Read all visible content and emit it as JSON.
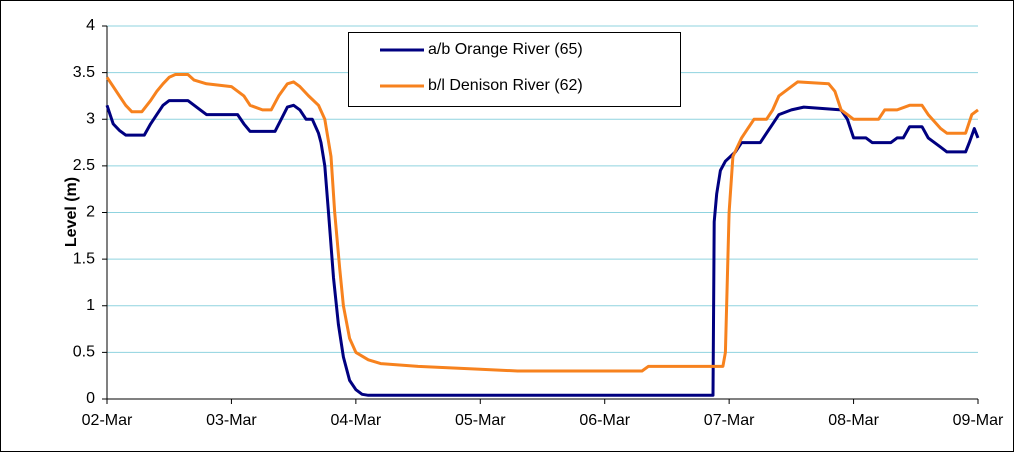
{
  "chart_data": {
    "type": "line",
    "y_label": "Level (m)",
    "xlim": [
      2,
      9
    ],
    "xticks": [
      {
        "value": 2,
        "label": "02-Mar"
      },
      {
        "value": 3,
        "label": "03-Mar"
      },
      {
        "value": 4,
        "label": "04-Mar"
      },
      {
        "value": 5,
        "label": "05-Mar"
      },
      {
        "value": 6,
        "label": "06-Mar"
      },
      {
        "value": 7,
        "label": "07-Mar"
      },
      {
        "value": 8,
        "label": "08-Mar"
      },
      {
        "value": 9,
        "label": "09-Mar"
      }
    ],
    "ylim": [
      0,
      4
    ],
    "yticks": [
      0,
      0.5,
      1,
      1.5,
      2,
      2.5,
      3,
      3.5,
      4
    ],
    "grid": true,
    "legend": "top",
    "series": [
      {
        "name": "a/b Orange River (65)",
        "color": "#000080",
        "x": [
          2.0,
          2.05,
          2.1,
          2.15,
          2.3,
          2.35,
          2.4,
          2.45,
          2.5,
          2.65,
          2.75,
          2.8,
          3.05,
          3.1,
          3.15,
          3.35,
          3.4,
          3.45,
          3.5,
          3.55,
          3.6,
          3.65,
          3.7,
          3.72,
          3.75,
          3.78,
          3.82,
          3.86,
          3.9,
          3.95,
          4.0,
          4.05,
          4.1,
          6.87,
          6.88,
          6.9,
          6.93,
          6.97,
          7.05,
          7.1,
          7.25,
          7.3,
          7.35,
          7.4,
          7.5,
          7.6,
          7.9,
          7.95,
          8.0,
          8.1,
          8.15,
          8.3,
          8.35,
          8.4,
          8.45,
          8.55,
          8.6,
          8.7,
          8.75,
          8.9,
          8.93,
          8.97,
          9.0
        ],
        "values": [
          3.15,
          2.95,
          2.88,
          2.83,
          2.83,
          2.95,
          3.05,
          3.15,
          3.2,
          3.2,
          3.1,
          3.05,
          3.05,
          2.95,
          2.87,
          2.87,
          3.0,
          3.13,
          3.15,
          3.1,
          3.0,
          3.0,
          2.85,
          2.75,
          2.5,
          2.0,
          1.3,
          0.8,
          0.45,
          0.2,
          0.1,
          0.05,
          0.04,
          0.04,
          1.9,
          2.2,
          2.45,
          2.55,
          2.65,
          2.75,
          2.75,
          2.85,
          2.95,
          3.05,
          3.1,
          3.13,
          3.1,
          3.0,
          2.8,
          2.8,
          2.75,
          2.75,
          2.8,
          2.8,
          2.92,
          2.92,
          2.8,
          2.7,
          2.65,
          2.65,
          2.75,
          2.9,
          2.8
        ]
      },
      {
        "name": "b/l Denison River (62)",
        "color": "#f7821e",
        "x": [
          2.0,
          2.05,
          2.1,
          2.15,
          2.2,
          2.28,
          2.35,
          2.4,
          2.45,
          2.5,
          2.55,
          2.65,
          2.7,
          2.8,
          3.0,
          3.1,
          3.15,
          3.25,
          3.32,
          3.38,
          3.45,
          3.5,
          3.55,
          3.62,
          3.7,
          3.75,
          3.8,
          3.83,
          3.87,
          3.9,
          3.95,
          4.0,
          4.1,
          4.2,
          4.5,
          5.0,
          5.3,
          6.3,
          6.35,
          6.95,
          6.97,
          7.0,
          7.03,
          7.1,
          7.15,
          7.2,
          7.3,
          7.35,
          7.4,
          7.5,
          7.55,
          7.8,
          7.85,
          7.9,
          7.95,
          8.0,
          8.2,
          8.25,
          8.35,
          8.45,
          8.55,
          8.6,
          8.7,
          8.75,
          8.9,
          8.95,
          9.0
        ],
        "values": [
          3.45,
          3.35,
          3.25,
          3.15,
          3.08,
          3.08,
          3.2,
          3.3,
          3.38,
          3.45,
          3.48,
          3.48,
          3.42,
          3.38,
          3.35,
          3.25,
          3.15,
          3.1,
          3.1,
          3.25,
          3.38,
          3.4,
          3.35,
          3.25,
          3.15,
          3.0,
          2.6,
          2.0,
          1.4,
          1.0,
          0.65,
          0.5,
          0.42,
          0.38,
          0.35,
          0.32,
          0.3,
          0.3,
          0.35,
          0.35,
          0.5,
          2.0,
          2.6,
          2.8,
          2.9,
          3.0,
          3.0,
          3.1,
          3.25,
          3.35,
          3.4,
          3.38,
          3.3,
          3.1,
          3.05,
          3.0,
          3.0,
          3.1,
          3.1,
          3.15,
          3.15,
          3.05,
          2.9,
          2.85,
          2.85,
          3.05,
          3.1
        ]
      }
    ]
  }
}
